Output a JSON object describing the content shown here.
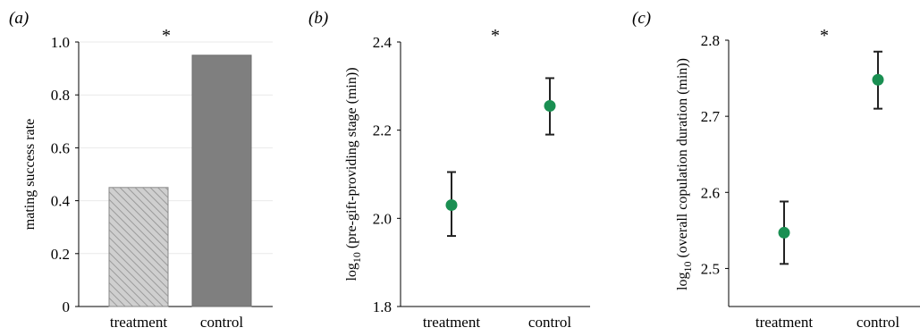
{
  "chart_data": [
    {
      "panel": "(a)",
      "type": "bar",
      "categories": [
        "treatment",
        "control"
      ],
      "values": [
        0.45,
        0.95
      ],
      "colors": [
        "#c9c9c9",
        "#7f7f7f"
      ],
      "patterns": [
        "hatched",
        "solid"
      ],
      "ylabel": "mating success rate",
      "xlabel": "",
      "ylim": [
        0,
        1.0
      ],
      "yticks": [
        "0",
        "0.2",
        "0.4",
        "0.6",
        "0.8",
        "1.0"
      ],
      "ytick_values": [
        0,
        0.2,
        0.4,
        0.6,
        0.8,
        1.0
      ],
      "annotation": "*",
      "grid": true
    },
    {
      "panel": "(b)",
      "type": "scatter",
      "categories": [
        "treatment",
        "control"
      ],
      "values": [
        2.03,
        2.255
      ],
      "err_low": [
        1.96,
        2.19
      ],
      "err_high": [
        2.105,
        2.318
      ],
      "marker_color": "#1a8f52",
      "ylabel_base": "log",
      "ylabel_sub": "10",
      "ylabel_rest": " (pre-gift-providing stage (min))",
      "xlabel": "",
      "ylim": [
        1.8,
        2.4
      ],
      "yticks": [
        "1.8",
        "2.0",
        "2.2",
        "2.4"
      ],
      "ytick_values": [
        1.8,
        2.0,
        2.2,
        2.4
      ],
      "annotation": "*",
      "grid": false
    },
    {
      "panel": "(c)",
      "type": "scatter",
      "categories": [
        "treatment",
        "control"
      ],
      "values": [
        2.547,
        2.748
      ],
      "err_low": [
        2.506,
        2.71
      ],
      "err_high": [
        2.588,
        2.785
      ],
      "marker_color": "#1a8f52",
      "ylabel_base": "log",
      "ylabel_sub": "10",
      "ylabel_rest": " (overall copulation duration (min))",
      "xlabel": "",
      "ylim": [
        2.45,
        2.8
      ],
      "yticks": [
        "2.5",
        "2.6",
        "2.7",
        "2.8"
      ],
      "ytick_values": [
        2.5,
        2.6,
        2.7,
        2.8
      ],
      "annotation": "*",
      "grid": false
    }
  ]
}
